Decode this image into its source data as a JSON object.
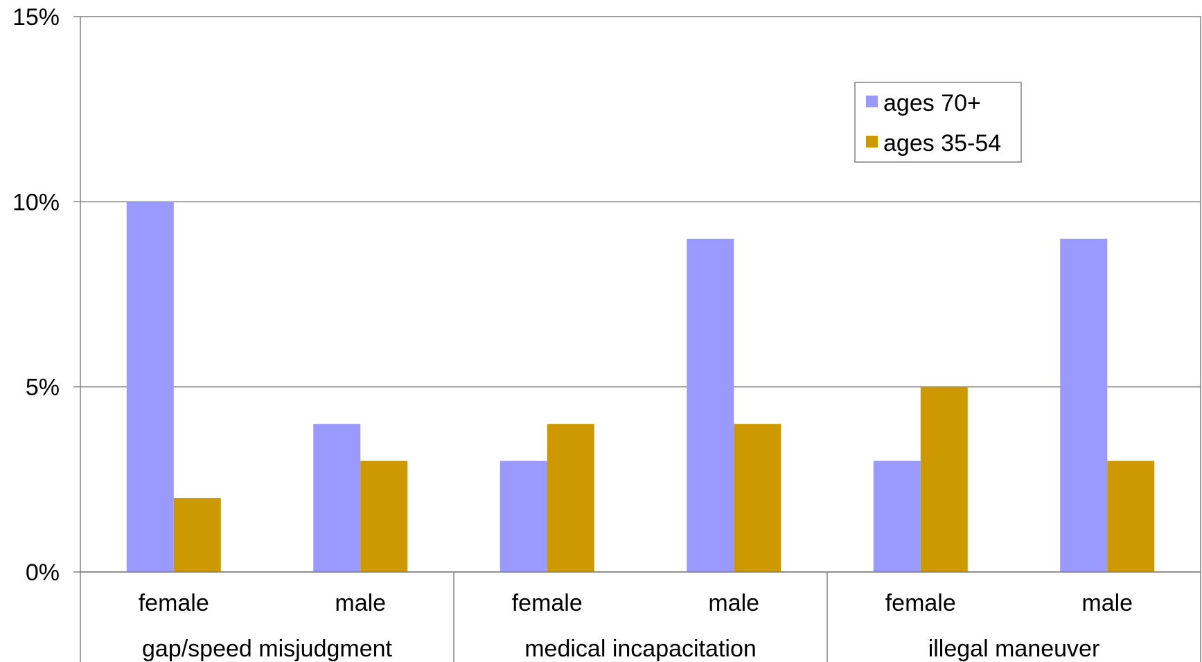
{
  "chart_data": {
    "type": "bar",
    "title": "",
    "xlabel": "",
    "ylabel": "",
    "ylim": [
      0,
      15
    ],
    "yticks": [
      0,
      5,
      10,
      15
    ],
    "ytick_labels": [
      "0%",
      "5%",
      "10%",
      "15%"
    ],
    "grid": true,
    "legend_position": "top-right",
    "groups": [
      "gap/speed misjudgment",
      "medical incapacitation",
      "illegal maneuver"
    ],
    "categories": [
      "female",
      "male",
      "female",
      "male",
      "female",
      "male"
    ],
    "series": [
      {
        "name": "ages 70+",
        "color": "#9999ff",
        "values": [
          10,
          4,
          3,
          9,
          3,
          9
        ]
      },
      {
        "name": "ages 35-54",
        "color": "#cc9900",
        "values": [
          2,
          3,
          4,
          4,
          5,
          3
        ]
      }
    ]
  }
}
